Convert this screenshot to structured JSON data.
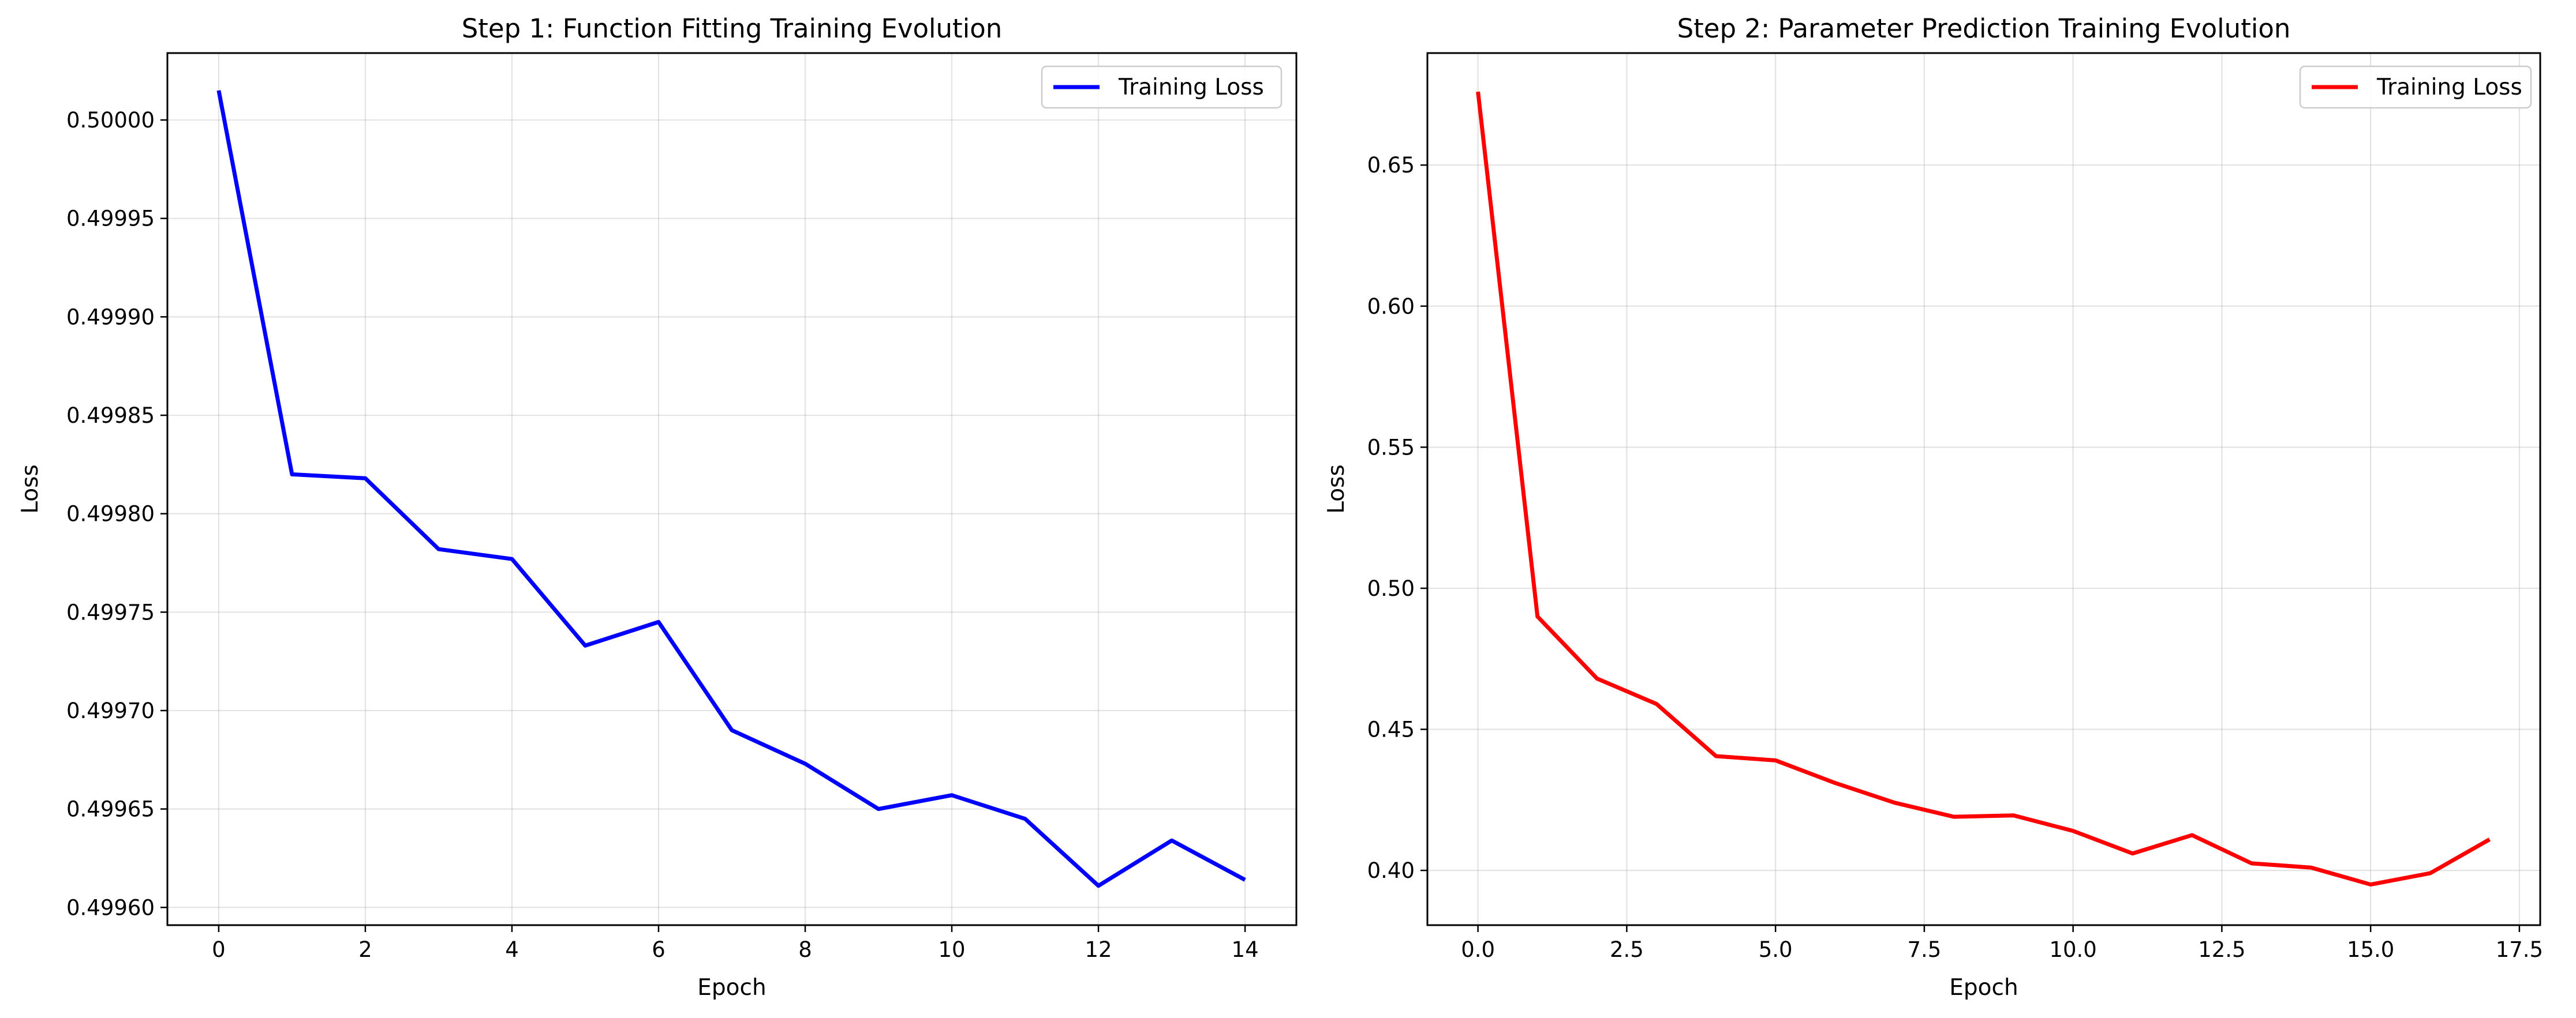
{
  "chart_data": [
    {
      "type": "line",
      "title": "Step 1: Function Fitting Training Evolution",
      "xlabel": "Epoch",
      "ylabel": "Loss",
      "xlim": [
        -0.7,
        14.7
      ],
      "ylim": [
        0.499591,
        0.500034
      ],
      "xticks": [
        0,
        2,
        4,
        6,
        8,
        10,
        12,
        14
      ],
      "xtick_labels": [
        "0",
        "2",
        "4",
        "6",
        "8",
        "10",
        "12",
        "14"
      ],
      "yticks": [
        0.4996,
        0.49965,
        0.4997,
        0.49975,
        0.4998,
        0.49985,
        0.4999,
        0.49995,
        0.5
      ],
      "ytick_labels": [
        "0.49960",
        "0.49965",
        "0.49970",
        "0.49975",
        "0.49980",
        "0.49985",
        "0.49990",
        "0.49995",
        "0.50000"
      ],
      "grid": true,
      "legend_position": "top-right",
      "series": [
        {
          "name": "Training Loss",
          "color": "#0000ff",
          "x": [
            0,
            1,
            2,
            3,
            4,
            5,
            6,
            7,
            8,
            9,
            10,
            11,
            12,
            13,
            14
          ],
          "values": [
            0.500015,
            0.49982,
            0.499818,
            0.499782,
            0.499777,
            0.499733,
            0.499745,
            0.49969,
            0.499673,
            0.49965,
            0.499657,
            0.499645,
            0.499611,
            0.499634,
            0.499614
          ]
        }
      ]
    },
    {
      "type": "line",
      "title": "Step 2: Parameter Prediction Training Evolution",
      "xlabel": "Epoch",
      "ylabel": "Loss",
      "xlim": [
        -0.85,
        17.85
      ],
      "ylim": [
        0.3806,
        0.6897
      ],
      "xticks": [
        0,
        2.5,
        5,
        7.5,
        10,
        12.5,
        15,
        17.5
      ],
      "xtick_labels": [
        "0.0",
        "2.5",
        "5.0",
        "7.5",
        "10.0",
        "12.5",
        "15.0",
        "17.5"
      ],
      "yticks": [
        0.4,
        0.45,
        0.5,
        0.55,
        0.6,
        0.65
      ],
      "ytick_labels": [
        "0.40",
        "0.45",
        "0.50",
        "0.55",
        "0.60",
        "0.65"
      ],
      "grid": true,
      "legend_position": "top-right",
      "series": [
        {
          "name": "Training Loss",
          "color": "#ff0000",
          "x": [
            0,
            1,
            2,
            3,
            4,
            5,
            6,
            7,
            8,
            9,
            10,
            11,
            12,
            13,
            14,
            15,
            16,
            17
          ],
          "values": [
            0.676,
            0.49,
            0.468,
            0.459,
            0.4405,
            0.439,
            0.431,
            0.424,
            0.419,
            0.4195,
            0.414,
            0.406,
            0.4125,
            0.4025,
            0.401,
            0.395,
            0.399,
            0.411
          ]
        }
      ]
    }
  ]
}
